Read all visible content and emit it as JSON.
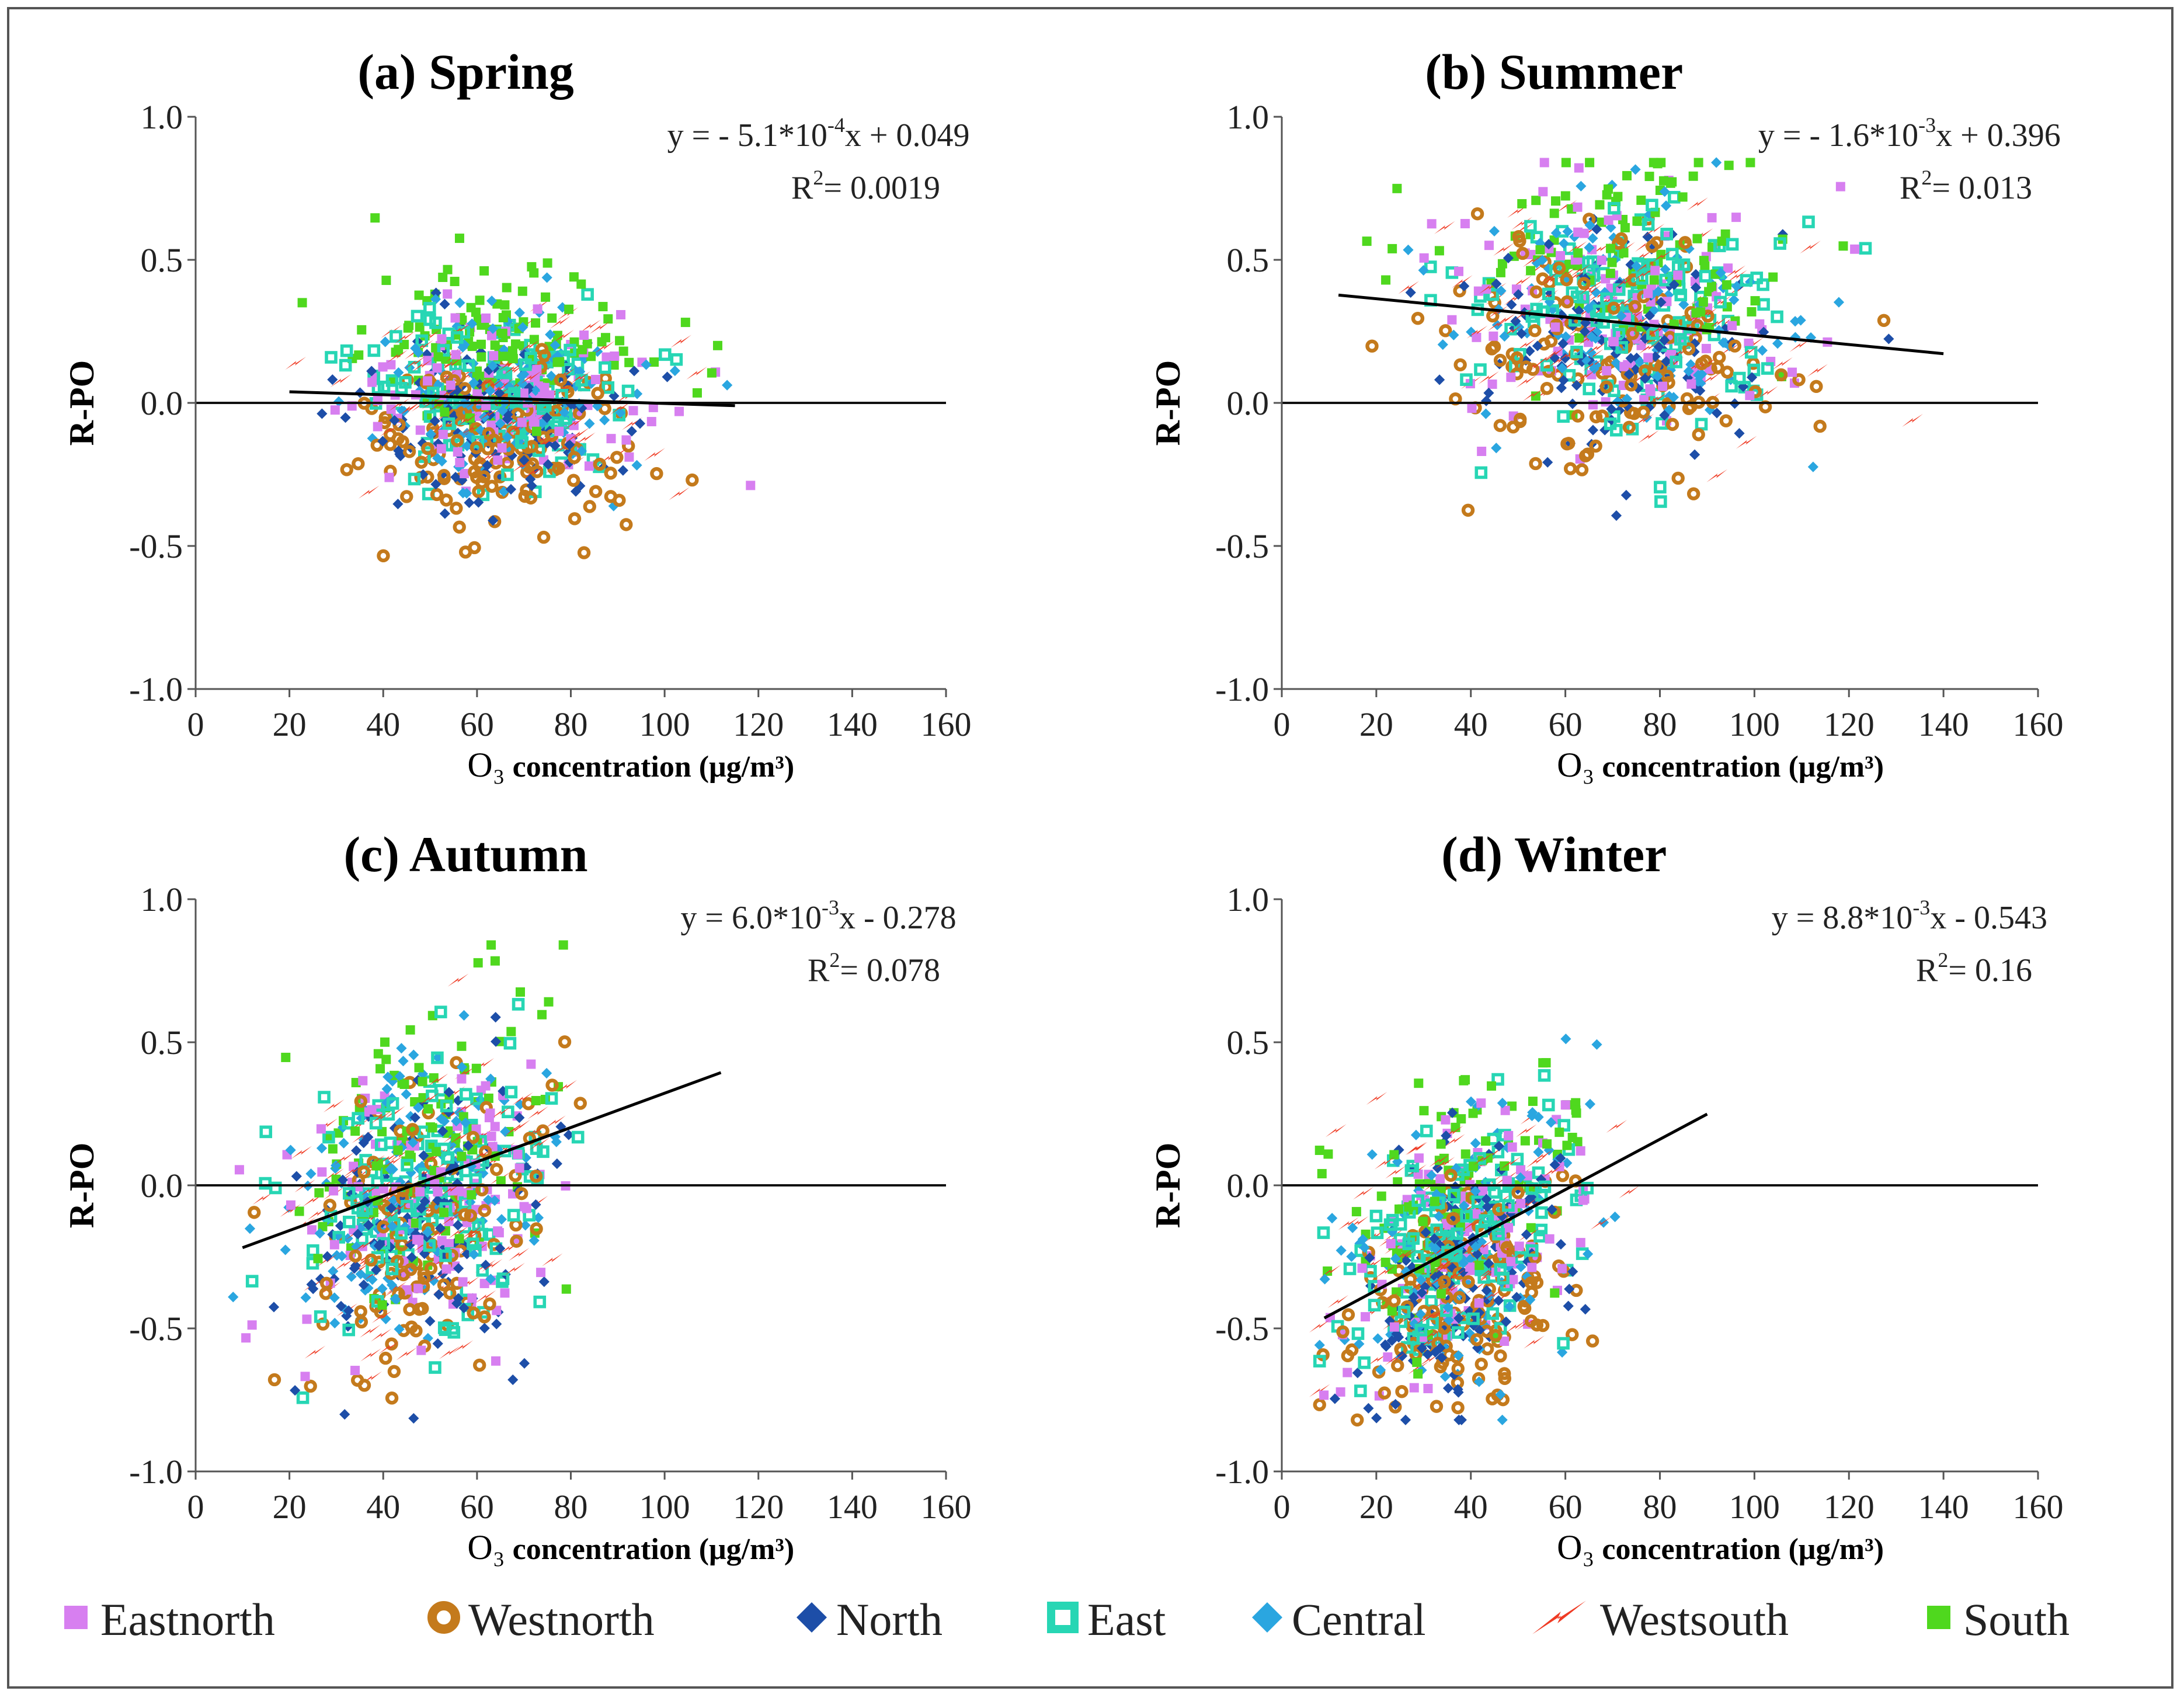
{
  "legend": {
    "items": [
      {
        "name": "Eastnorth",
        "color": "#d77ff0",
        "marker": "square"
      },
      {
        "name": "Westnorth",
        "color": "#c47a1c",
        "marker": "ring"
      },
      {
        "name": "North",
        "color": "#1d4ea8",
        "marker": "diamond"
      },
      {
        "name": "East",
        "color": "#27d6b4",
        "marker": "hollow-square"
      },
      {
        "name": "Central",
        "color": "#2aa6e0",
        "marker": "diamond"
      },
      {
        "name": "Westsouth",
        "color": "#ef3b24",
        "marker": "bolt"
      },
      {
        "name": "South",
        "color": "#4fd81e",
        "marker": "square"
      }
    ]
  },
  "chart_data": [
    {
      "type": "scatter",
      "title": "(a) Spring",
      "xlabel_o3": "O₃",
      "xlabel_rest": " concentration (μg/m³)",
      "ylabel": "R-PO",
      "xlim": [
        0,
        160
      ],
      "ylim": [
        -1.0,
        1.0
      ],
      "xticks": [
        "0",
        "20",
        "40",
        "60",
        "80",
        "100",
        "120",
        "140",
        "160"
      ],
      "yticks": [
        "1.0",
        "0.5",
        "0.0",
        "-0.5",
        "-1.0"
      ],
      "equation": {
        "prefix": "y = - 5.1*10",
        "exp": "-4",
        "suffix": "x + 0.049"
      },
      "r2": {
        "prefix": "R",
        "exp": "2",
        "suffix": "= 0.0019"
      },
      "fit": {
        "slope": -0.00051,
        "intercept": 0.049,
        "x_range": [
          20,
          115
        ]
      },
      "zero_line": true,
      "cloud": {
        "x_mean": 65,
        "x_sd": 15,
        "y_mean": 0.02,
        "y_sd": 0.15,
        "seed": 11,
        "count": 900
      }
    },
    {
      "type": "scatter",
      "title": "(b) Summer",
      "xlabel_o3": "O₃",
      "xlabel_rest": " concentration (μg/m³)",
      "ylabel": "R-PO",
      "xlim": [
        0,
        160
      ],
      "ylim": [
        -1.0,
        1.0
      ],
      "xticks": [
        "0",
        "20",
        "40",
        "60",
        "80",
        "100",
        "120",
        "140",
        "160"
      ],
      "yticks": [
        "1.0",
        "0.5",
        "0.0",
        "-0.5",
        "-1.0"
      ],
      "equation": {
        "prefix": "y = - 1.6*10",
        "exp": "-3",
        "suffix": "x + 0.396"
      },
      "r2": {
        "prefix": "R",
        "exp": "2",
        "suffix": "= 0.013"
      },
      "fit": {
        "slope": -0.0016,
        "intercept": 0.396,
        "x_range": [
          12,
          140
        ]
      },
      "zero_line": true,
      "cloud": {
        "x_mean": 72,
        "x_sd": 18,
        "y_mean": 0.3,
        "y_sd": 0.2,
        "seed": 23,
        "count": 900
      }
    },
    {
      "type": "scatter",
      "title": "(c) Autumn",
      "xlabel_o3": "O₃",
      "xlabel_rest": " concentration (μg/m³)",
      "ylabel": "R-PO",
      "xlim": [
        0,
        160
      ],
      "ylim": [
        -1.0,
        1.0
      ],
      "xticks": [
        "0",
        "20",
        "40",
        "60",
        "80",
        "100",
        "120",
        "140",
        "160"
      ],
      "yticks": [
        "1.0",
        "0.5",
        "0.0",
        "-0.5",
        "-1.0"
      ],
      "equation": {
        "prefix": "y = 6.0*10",
        "exp": "-3",
        "suffix": "x - 0.278"
      },
      "r2": {
        "prefix": "R",
        "exp": "2",
        "suffix": "= 0.078"
      },
      "fit": {
        "slope": 0.006,
        "intercept": -0.278,
        "x_range": [
          10,
          112
        ]
      },
      "zero_line": true,
      "cloud": {
        "x_mean": 48,
        "x_sd": 14,
        "y_mean": -0.05,
        "y_sd": 0.24,
        "seed": 37,
        "count": 900
      }
    },
    {
      "type": "scatter",
      "title": "(d) Winter",
      "xlabel_o3": "O₃",
      "xlabel_rest": " concentration (μg/m³)",
      "ylabel": "R-PO",
      "xlim": [
        0,
        160
      ],
      "ylim": [
        -1.0,
        1.0
      ],
      "xticks": [
        "0",
        "20",
        "40",
        "60",
        "80",
        "100",
        "120",
        "140",
        "160"
      ],
      "yticks": [
        "1.0",
        "0.5",
        "0.0",
        "-0.5",
        "-1.0"
      ],
      "equation": {
        "prefix": "y = 8.8*10",
        "exp": "-3",
        "suffix": "x - 0.543"
      },
      "r2": {
        "prefix": "R",
        "exp": "2",
        "suffix": "= 0.16"
      },
      "fit": {
        "slope": 0.0088,
        "intercept": -0.543,
        "x_range": [
          9,
          90
        ]
      },
      "zero_line": true,
      "cloud": {
        "x_mean": 38,
        "x_sd": 12,
        "y_mean": -0.22,
        "y_sd": 0.22,
        "seed": 53,
        "count": 900
      }
    }
  ]
}
